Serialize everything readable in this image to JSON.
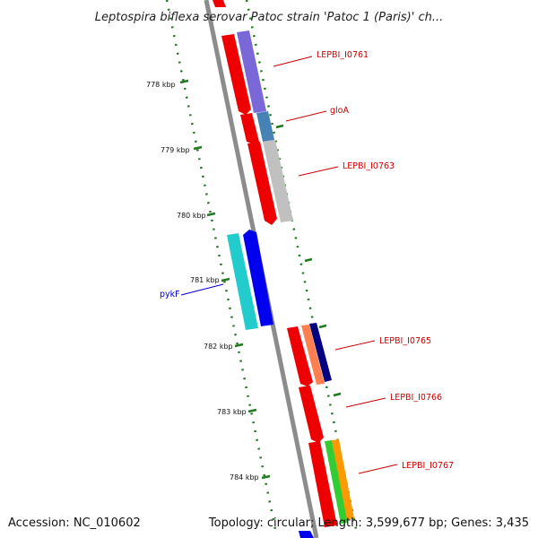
{
  "title": "Leptospira biflexa serovar Patoc strain 'Patoc 1 (Paris)' ch...",
  "footer": {
    "accession": "Accession: NC_010602",
    "summary": "Topology: circular; Length: 3,599,677 bp; Genes: 3,435"
  },
  "colors": {
    "backbone": "#8c8c8c",
    "tick": "#1f7a1f",
    "label_red": "#cc0000",
    "label_blue": "#0000cc"
  },
  "ticks": [
    "778 kbp",
    "779 kbp",
    "780 kbp",
    "781 kbp",
    "782 kbp",
    "783 kbp",
    "784 kbp"
  ],
  "genes": [
    {
      "label": "LEPBI_I0761",
      "label_color": "#cc0000"
    },
    {
      "label": "gloA",
      "label_color": "#cc0000"
    },
    {
      "label": "LEPBI_I0763",
      "label_color": "#cc0000"
    },
    {
      "label": "pykF",
      "label_color": "#0000cc"
    },
    {
      "label": "LEPBI_I0765",
      "label_color": "#cc0000"
    },
    {
      "label": "LEPBI_I0766",
      "label_color": "#cc0000"
    },
    {
      "label": "LEPBI_I0767",
      "label_color": "#cc0000"
    }
  ]
}
